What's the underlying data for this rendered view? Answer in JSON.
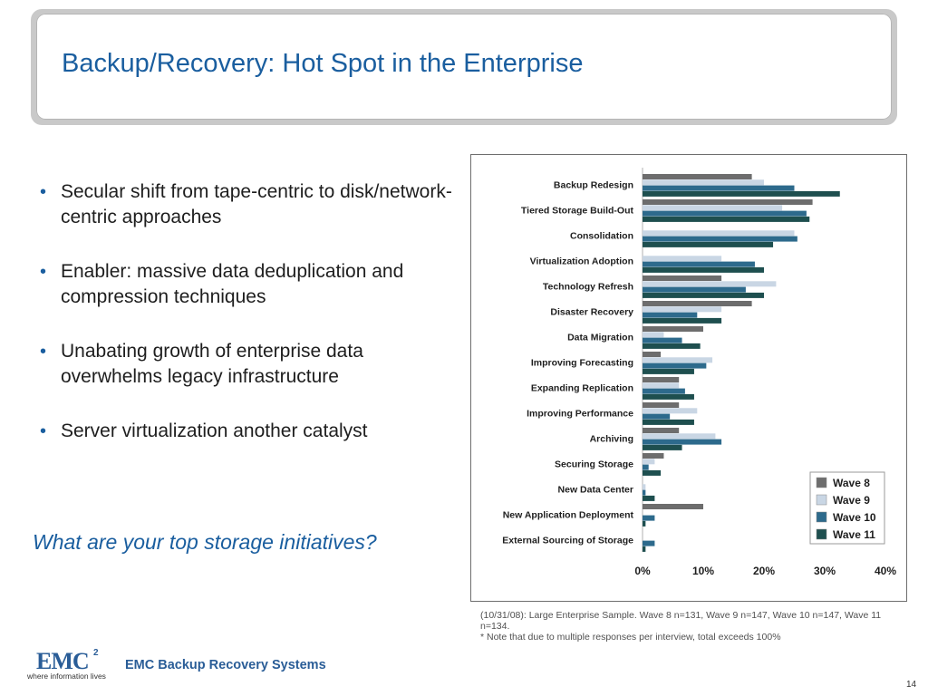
{
  "slide": {
    "title": "Backup/Recovery: Hot Spot in the Enterprise",
    "bullets": [
      "Secular shift from tape-centric to disk/network-centric approaches",
      "Enabler: massive data deduplication and compression techniques",
      "Unabating growth of enterprise data overwhelms legacy infrastructure",
      "Server virtualization another catalyst"
    ],
    "question": "What are your top storage initiatives?",
    "page_number": "14"
  },
  "chart_footnote": {
    "line1": "(10/31/08): Large Enterprise Sample. Wave 8 n=131, Wave 9 n=147, Wave 10 n=147, Wave 11 n=134.",
    "line2": "* Note that due to multiple responses per interview, total exceeds 100%"
  },
  "footer": {
    "logo_text": "EMC",
    "logo_superscript": "2",
    "logo_tagline": "where information lives",
    "brand": "EMC Backup Recovery Systems"
  },
  "colors": {
    "title_blue": "#1a5e9f",
    "wave8": "#6d6d6d",
    "wave9": "#c9d6e4",
    "wave10": "#2d6a8c",
    "wave11": "#1e4f4f"
  },
  "chart_data": {
    "type": "bar",
    "orientation": "horizontal",
    "categories": [
      "Backup Redesign",
      "Tiered Storage Build-Out",
      "Consolidation",
      "Virtualization Adoption",
      "Technology Refresh",
      "Disaster Recovery",
      "Data Migration",
      "Improving Forecasting",
      "Expanding Replication",
      "Improving Performance",
      "Archiving",
      "Securing Storage",
      "New Data Center",
      "New Application Deployment",
      "External Sourcing of Storage"
    ],
    "series": [
      {
        "name": "Wave 8",
        "values": [
          18,
          28,
          0,
          0,
          13,
          18,
          10,
          3,
          6,
          6,
          6,
          3.5,
          0,
          10,
          0
        ]
      },
      {
        "name": "Wave 9",
        "values": [
          20,
          23,
          25,
          13,
          22,
          13,
          3.5,
          11.5,
          6,
          9,
          12,
          2,
          0.5,
          0,
          0
        ]
      },
      {
        "name": "Wave 10",
        "values": [
          25,
          27,
          25.5,
          18.5,
          17,
          9,
          6.5,
          10.5,
          7,
          4.5,
          13,
          1,
          0.5,
          2,
          2
        ]
      },
      {
        "name": "Wave 11",
        "values": [
          32.5,
          27.5,
          21.5,
          20,
          20,
          13,
          9.5,
          8.5,
          8.5,
          8.5,
          6.5,
          3,
          2,
          0.5,
          0.5
        ]
      }
    ],
    "xlim": [
      0,
      40
    ],
    "xticks": [
      "0%",
      "10%",
      "20%",
      "30%",
      "40%"
    ],
    "legend": "bottom-right",
    "grid": false
  }
}
